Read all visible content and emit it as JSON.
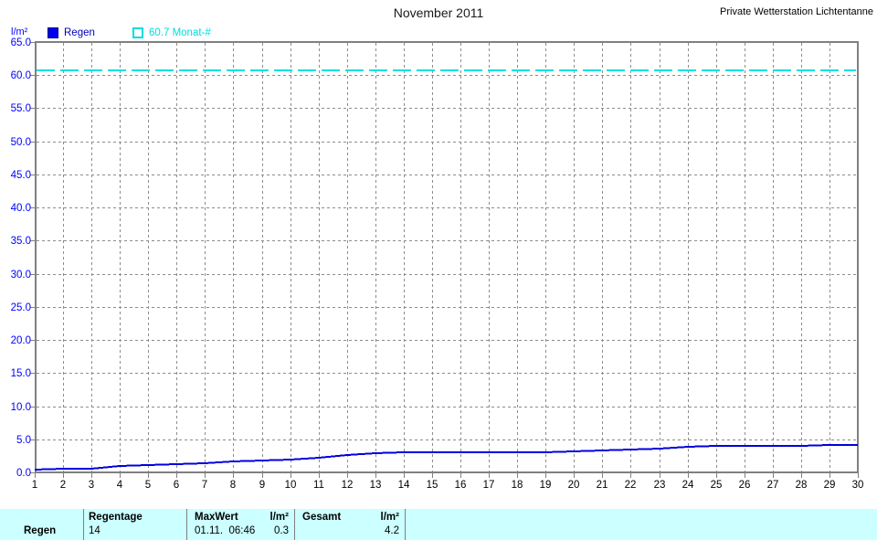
{
  "header": {
    "title": "November 2011",
    "station": "Private Wetterstation Lichtentanne"
  },
  "legend": {
    "series1_label": "Regen",
    "series2_label": "60.7 Monat-#"
  },
  "chart_data": {
    "type": "line",
    "title": "November 2011",
    "xlabel": "",
    "ylabel": "l/m²",
    "x": [
      1,
      2,
      3,
      4,
      5,
      6,
      7,
      8,
      9,
      10,
      11,
      12,
      13,
      14,
      15,
      16,
      17,
      18,
      19,
      20,
      21,
      22,
      23,
      24,
      25,
      26,
      27,
      28,
      29,
      30
    ],
    "series": [
      {
        "name": "Regen",
        "kind": "cumulative-line",
        "color": "#0000dd",
        "values": [
          0.4,
          0.5,
          0.6,
          0.9,
          1.1,
          1.3,
          1.4,
          1.6,
          1.8,
          2.0,
          2.2,
          2.6,
          2.9,
          3.0,
          3.1,
          3.1,
          3.1,
          3.1,
          3.1,
          3.2,
          3.3,
          3.5,
          3.6,
          3.9,
          4.0,
          4.0,
          4.0,
          4.0,
          4.1,
          4.2
        ]
      },
      {
        "name": "60.7 Monat-#",
        "kind": "reference-line",
        "style": "dashed",
        "color": "#00e1e1",
        "constant": 60.7
      }
    ],
    "ylim": [
      0,
      65
    ],
    "ytick_step": 5,
    "xlim": [
      1,
      30
    ],
    "grid": true,
    "legend_position": "top-left"
  },
  "table": {
    "name_label": "Regen",
    "regentage_header": "Regentage",
    "regentage_value": "14",
    "maxwert_header": "MaxWert",
    "maxwert_unit": "l/m²",
    "maxwert_value": "01.11.  06:46",
    "maxwert_amount": "0.3",
    "gesamt_header": "Gesamt",
    "gesamt_unit": "l/m²",
    "gesamt_amount": "4.2"
  },
  "colors": {
    "axis_border": "#808080",
    "gridline": "#8c8c8c",
    "tick_label_y": "#0000ff",
    "tick_label_x": "#000000",
    "rain_line": "#0000dd",
    "normal_line": "#00e1e1",
    "table_bg": "#ccffff"
  }
}
